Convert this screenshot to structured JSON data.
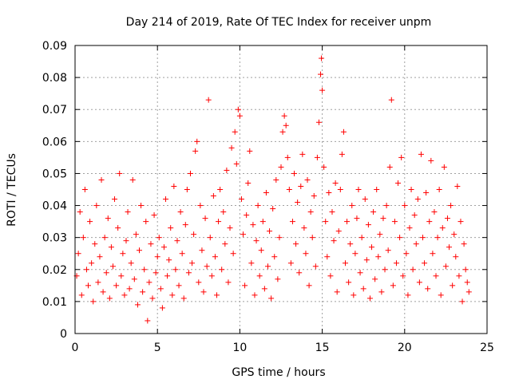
{
  "chart_data": {
    "type": "scatter",
    "title": "Day 214 of 2019, Rate Of TEC Index for receiver unpm",
    "xlabel": "GPS time / hours",
    "ylabel": "ROTI / TECUs",
    "xlim": [
      0,
      25
    ],
    "ylim": [
      0,
      0.09
    ],
    "xticks": [
      0,
      5,
      10,
      15,
      20,
      25
    ],
    "xtick_labels": [
      "0",
      "5",
      "10",
      "15",
      "20",
      "25"
    ],
    "yticks": [
      0,
      0.01,
      0.02,
      0.03,
      0.04,
      0.05,
      0.06,
      0.07,
      0.08,
      0.09
    ],
    "ytick_labels": [
      "0",
      "0.01",
      "0.02",
      "0.03",
      "0.04",
      "0.05",
      "0.06",
      "0.07",
      "0.08",
      "0.09"
    ],
    "grid": true,
    "marker": "plus",
    "series_color": "#ff0000",
    "series": [
      {
        "name": "ROTI",
        "points": [
          [
            0.1,
            0.018
          ],
          [
            0.2,
            0.025
          ],
          [
            0.3,
            0.038
          ],
          [
            0.4,
            0.012
          ],
          [
            0.5,
            0.03
          ],
          [
            0.6,
            0.045
          ],
          [
            0.7,
            0.02
          ],
          [
            0.8,
            0.015
          ],
          [
            0.9,
            0.035
          ],
          [
            1.0,
            0.022
          ],
          [
            1.1,
            0.01
          ],
          [
            1.2,
            0.028
          ],
          [
            1.3,
            0.04
          ],
          [
            1.4,
            0.016
          ],
          [
            1.5,
            0.024
          ],
          [
            1.6,
            0.048
          ],
          [
            1.7,
            0.013
          ],
          [
            1.8,
            0.03
          ],
          [
            1.9,
            0.019
          ],
          [
            2.0,
            0.036
          ],
          [
            2.1,
            0.011
          ],
          [
            2.2,
            0.027
          ],
          [
            2.3,
            0.021
          ],
          [
            2.4,
            0.042
          ],
          [
            2.5,
            0.015
          ],
          [
            2.6,
            0.033
          ],
          [
            2.7,
            0.05
          ],
          [
            2.8,
            0.018
          ],
          [
            2.9,
            0.025
          ],
          [
            3.0,
            0.012
          ],
          [
            3.1,
            0.029
          ],
          [
            3.2,
            0.038
          ],
          [
            3.3,
            0.014
          ],
          [
            3.4,
            0.022
          ],
          [
            3.5,
            0.048
          ],
          [
            3.6,
            0.017
          ],
          [
            3.7,
            0.031
          ],
          [
            3.8,
            0.009
          ],
          [
            3.9,
            0.026
          ],
          [
            4.0,
            0.04
          ],
          [
            4.1,
            0.013
          ],
          [
            4.2,
            0.02
          ],
          [
            4.3,
            0.035
          ],
          [
            4.4,
            0.004
          ],
          [
            4.5,
            0.016
          ],
          [
            4.6,
            0.028
          ],
          [
            4.7,
            0.011
          ],
          [
            4.8,
            0.037
          ],
          [
            4.9,
            0.019
          ],
          [
            5.0,
            0.024
          ],
          [
            5.1,
            0.03
          ],
          [
            5.2,
            0.014
          ],
          [
            5.3,
            0.008
          ],
          [
            5.4,
            0.027
          ],
          [
            5.5,
            0.042
          ],
          [
            5.6,
            0.018
          ],
          [
            5.7,
            0.023
          ],
          [
            5.8,
            0.033
          ],
          [
            5.9,
            0.012
          ],
          [
            6.0,
            0.046
          ],
          [
            6.1,
            0.02
          ],
          [
            6.2,
            0.029
          ],
          [
            6.3,
            0.015
          ],
          [
            6.4,
            0.038
          ],
          [
            6.5,
            0.025
          ],
          [
            6.6,
            0.011
          ],
          [
            6.7,
            0.034
          ],
          [
            6.8,
            0.045
          ],
          [
            6.9,
            0.019
          ],
          [
            7.0,
            0.05
          ],
          [
            7.1,
            0.022
          ],
          [
            7.2,
            0.031
          ],
          [
            7.3,
            0.057
          ],
          [
            7.4,
            0.06
          ],
          [
            7.5,
            0.016
          ],
          [
            7.6,
            0.04
          ],
          [
            7.7,
            0.026
          ],
          [
            7.8,
            0.013
          ],
          [
            7.9,
            0.036
          ],
          [
            8.0,
            0.021
          ],
          [
            8.1,
            0.073
          ],
          [
            8.2,
            0.03
          ],
          [
            8.3,
            0.018
          ],
          [
            8.4,
            0.043
          ],
          [
            8.5,
            0.024
          ],
          [
            8.6,
            0.012
          ],
          [
            8.7,
            0.035
          ],
          [
            8.8,
            0.045
          ],
          [
            8.9,
            0.02
          ],
          [
            9.0,
            0.038
          ],
          [
            9.1,
            0.028
          ],
          [
            9.2,
            0.051
          ],
          [
            9.3,
            0.016
          ],
          [
            9.4,
            0.033
          ],
          [
            9.5,
            0.058
          ],
          [
            9.6,
            0.025
          ],
          [
            9.7,
            0.063
          ],
          [
            9.8,
            0.053
          ],
          [
            9.9,
            0.07
          ],
          [
            10.0,
            0.068
          ],
          [
            10.1,
            0.042
          ],
          [
            10.2,
            0.031
          ],
          [
            10.3,
            0.015
          ],
          [
            10.4,
            0.037
          ],
          [
            10.5,
            0.047
          ],
          [
            10.6,
            0.057
          ],
          [
            10.7,
            0.022
          ],
          [
            10.8,
            0.034
          ],
          [
            10.9,
            0.012
          ],
          [
            11.0,
            0.029
          ],
          [
            11.1,
            0.04
          ],
          [
            11.2,
            0.018
          ],
          [
            11.3,
            0.026
          ],
          [
            11.4,
            0.035
          ],
          [
            11.5,
            0.014
          ],
          [
            11.6,
            0.044
          ],
          [
            11.7,
            0.021
          ],
          [
            11.8,
            0.032
          ],
          [
            11.9,
            0.011
          ],
          [
            12.0,
            0.039
          ],
          [
            12.1,
            0.024
          ],
          [
            12.2,
            0.048
          ],
          [
            12.3,
            0.017
          ],
          [
            12.4,
            0.03
          ],
          [
            12.5,
            0.052
          ],
          [
            12.6,
            0.063
          ],
          [
            12.7,
            0.068
          ],
          [
            12.8,
            0.065
          ],
          [
            12.9,
            0.055
          ],
          [
            13.0,
            0.045
          ],
          [
            13.1,
            0.022
          ],
          [
            13.2,
            0.035
          ],
          [
            13.3,
            0.05
          ],
          [
            13.4,
            0.028
          ],
          [
            13.5,
            0.041
          ],
          [
            13.6,
            0.019
          ],
          [
            13.7,
            0.046
          ],
          [
            13.8,
            0.056
          ],
          [
            13.9,
            0.033
          ],
          [
            14.0,
            0.025
          ],
          [
            14.1,
            0.048
          ],
          [
            14.2,
            0.015
          ],
          [
            14.3,
            0.038
          ],
          [
            14.4,
            0.03
          ],
          [
            14.5,
            0.043
          ],
          [
            14.6,
            0.021
          ],
          [
            14.7,
            0.055
          ],
          [
            14.8,
            0.066
          ],
          [
            14.9,
            0.081
          ],
          [
            14.95,
            0.086
          ],
          [
            15.0,
            0.076
          ],
          [
            15.1,
            0.052
          ],
          [
            15.2,
            0.035
          ],
          [
            15.3,
            0.024
          ],
          [
            15.4,
            0.044
          ],
          [
            15.5,
            0.018
          ],
          [
            15.6,
            0.038
          ],
          [
            15.7,
            0.029
          ],
          [
            15.8,
            0.047
          ],
          [
            15.9,
            0.013
          ],
          [
            16.0,
            0.032
          ],
          [
            16.1,
            0.045
          ],
          [
            16.2,
            0.056
          ],
          [
            16.3,
            0.063
          ],
          [
            16.4,
            0.022
          ],
          [
            16.5,
            0.035
          ],
          [
            16.6,
            0.016
          ],
          [
            16.7,
            0.028
          ],
          [
            16.8,
            0.04
          ],
          [
            16.9,
            0.012
          ],
          [
            17.0,
            0.025
          ],
          [
            17.1,
            0.036
          ],
          [
            17.2,
            0.045
          ],
          [
            17.3,
            0.019
          ],
          [
            17.4,
            0.03
          ],
          [
            17.5,
            0.014
          ],
          [
            17.6,
            0.042
          ],
          [
            17.7,
            0.023
          ],
          [
            17.8,
            0.034
          ],
          [
            17.9,
            0.011
          ],
          [
            18.0,
            0.027
          ],
          [
            18.1,
            0.038
          ],
          [
            18.2,
            0.017
          ],
          [
            18.3,
            0.045
          ],
          [
            18.4,
            0.024
          ],
          [
            18.5,
            0.031
          ],
          [
            18.6,
            0.013
          ],
          [
            18.7,
            0.036
          ],
          [
            18.8,
            0.02
          ],
          [
            18.9,
            0.04
          ],
          [
            19.0,
            0.026
          ],
          [
            19.1,
            0.052
          ],
          [
            19.2,
            0.073
          ],
          [
            19.3,
            0.015
          ],
          [
            19.4,
            0.035
          ],
          [
            19.5,
            0.022
          ],
          [
            19.6,
            0.047
          ],
          [
            19.7,
            0.03
          ],
          [
            19.8,
            0.055
          ],
          [
            19.9,
            0.018
          ],
          [
            20.0,
            0.04
          ],
          [
            20.1,
            0.025
          ],
          [
            20.2,
            0.012
          ],
          [
            20.3,
            0.033
          ],
          [
            20.4,
            0.045
          ],
          [
            20.5,
            0.02
          ],
          [
            20.6,
            0.037
          ],
          [
            20.7,
            0.028
          ],
          [
            20.8,
            0.042
          ],
          [
            20.9,
            0.016
          ],
          [
            21.0,
            0.056
          ],
          [
            21.1,
            0.03
          ],
          [
            21.2,
            0.022
          ],
          [
            21.3,
            0.044
          ],
          [
            21.4,
            0.014
          ],
          [
            21.5,
            0.035
          ],
          [
            21.6,
            0.054
          ],
          [
            21.7,
            0.025
          ],
          [
            21.8,
            0.038
          ],
          [
            21.9,
            0.018
          ],
          [
            22.0,
            0.03
          ],
          [
            22.1,
            0.045
          ],
          [
            22.2,
            0.012
          ],
          [
            22.3,
            0.033
          ],
          [
            22.4,
            0.052
          ],
          [
            22.5,
            0.021
          ],
          [
            22.6,
            0.036
          ],
          [
            22.7,
            0.027
          ],
          [
            22.8,
            0.04
          ],
          [
            22.9,
            0.015
          ],
          [
            23.0,
            0.031
          ],
          [
            23.1,
            0.024
          ],
          [
            23.2,
            0.046
          ],
          [
            23.3,
            0.018
          ],
          [
            23.4,
            0.035
          ],
          [
            23.5,
            0.01
          ],
          [
            23.6,
            0.028
          ],
          [
            23.7,
            0.02
          ],
          [
            23.8,
            0.016
          ],
          [
            23.9,
            0.013
          ]
        ]
      }
    ]
  }
}
